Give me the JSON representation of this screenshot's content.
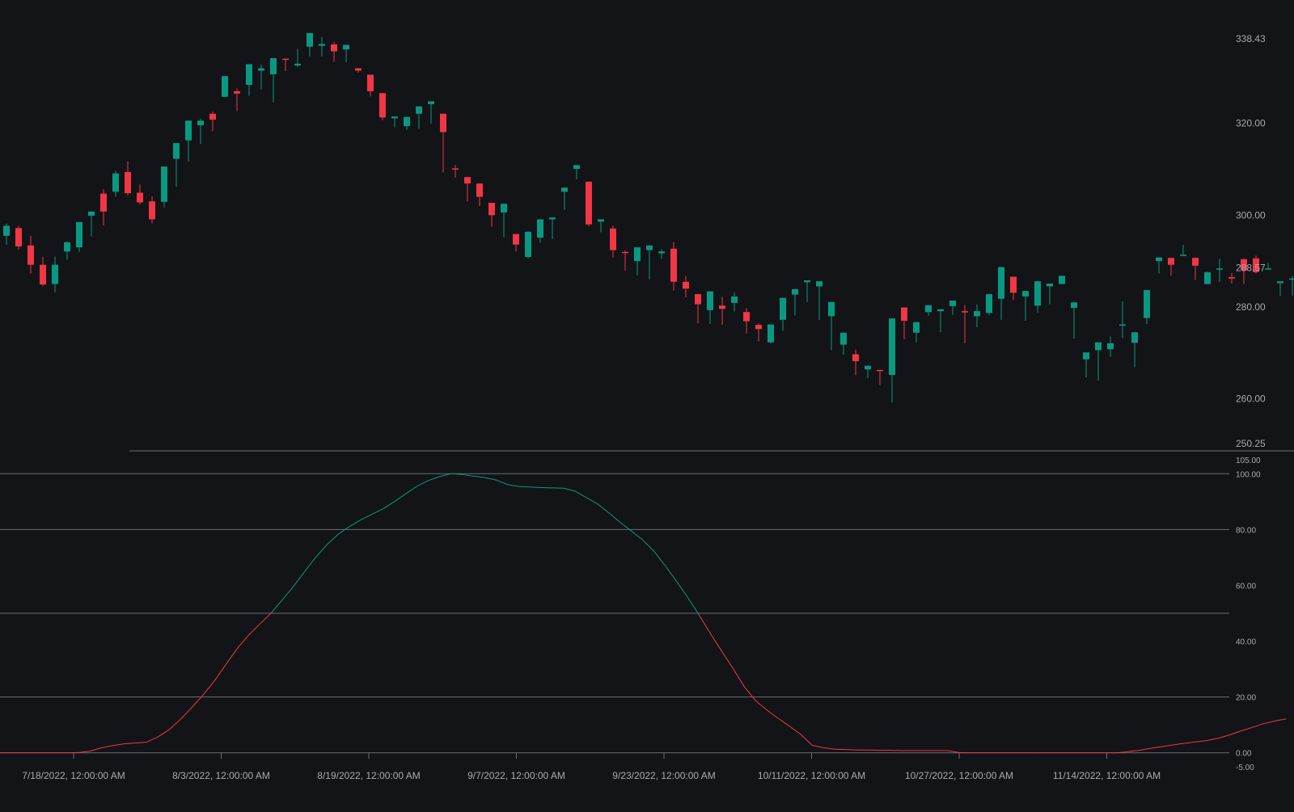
{
  "colors": {
    "background": "#131417",
    "bullish": "#089981",
    "bearish": "#f23645",
    "grid": "#6b6e76",
    "text": "#a8aab0"
  },
  "chart_data": [
    {
      "type": "candlestick",
      "title": "",
      "ylim": [
        250.25,
        338.43
      ],
      "price_axis_labels": [
        "338.43",
        "320.00",
        "300.00",
        "288.57",
        "280.00",
        "260.00",
        "250.25"
      ],
      "last_price": "288.57",
      "x_axis_labels": [
        "7/18/2022, 12:00:00 AM",
        "8/3/2022, 12:00:00 AM",
        "8/19/2022, 12:00:00 AM",
        "9/7/2022, 12:00:00 AM",
        "9/23/2022, 12:00:00 AM",
        "10/11/2022, 12:00:00 AM",
        "10/27/2022, 12:00:00 AM",
        "11/14/2022, 12:00:00 AM"
      ],
      "candles_ohlc": [
        [
          295.5,
          298.2,
          293.5,
          297.7
        ],
        [
          297.2,
          297.7,
          292.5,
          293.2
        ],
        [
          293.4,
          295.5,
          287.3,
          289.2
        ],
        [
          289.2,
          290.9,
          284.5,
          284.9
        ],
        [
          285.0,
          291.0,
          283.2,
          289.2
        ],
        [
          292.1,
          294.3,
          290.3,
          294.1
        ],
        [
          293.0,
          297.3,
          292.0,
          298.5
        ],
        [
          299.9,
          300.7,
          295.4,
          300.8
        ],
        [
          304.7,
          305.6,
          297.8,
          300.8
        ],
        [
          305.1,
          309.7,
          304.0,
          309.1
        ],
        [
          309.4,
          311.7,
          304.3,
          304.8
        ],
        [
          304.9,
          306.7,
          302.3,
          302.8
        ],
        [
          303.0,
          304.1,
          298.2,
          299.1
        ],
        [
          302.9,
          307.6,
          301.7,
          310.6
        ],
        [
          312.3,
          313.5,
          306.2,
          315.7
        ],
        [
          316.3,
          317.7,
          311.7,
          320.6
        ],
        [
          319.6,
          321.0,
          315.5,
          320.6
        ],
        [
          322.1,
          322.6,
          318.3,
          320.8
        ],
        [
          325.8,
          327.9,
          325.7,
          330.3
        ],
        [
          327.0,
          327.6,
          322.7,
          326.5
        ],
        [
          328.4,
          331.3,
          326.0,
          332.9
        ],
        [
          331.5,
          332.8,
          327.4,
          332.0
        ],
        [
          330.7,
          328.6,
          324.6,
          334.2
        ],
        [
          334.1,
          332.6,
          331.4,
          334.0
        ],
        [
          332.6,
          336.2,
          332.3,
          333.0
        ],
        [
          336.7,
          338.4,
          334.6,
          339.7
        ],
        [
          336.9,
          338.8,
          334.6,
          337.3
        ],
        [
          337.2,
          337.8,
          333.4,
          335.7
        ],
        [
          336.1,
          335.2,
          333.3,
          337.1
        ],
        [
          332.0,
          331.0,
          331.6,
          331.5
        ],
        [
          330.6,
          330.4,
          325.9,
          327.0
        ],
        [
          326.6,
          326.5,
          320.7,
          321.3
        ],
        [
          321.1,
          320.7,
          319.1,
          321.5
        ],
        [
          319.4,
          320.8,
          318.6,
          321.4
        ],
        [
          322.1,
          321.6,
          318.8,
          323.7
        ],
        [
          324.2,
          324.0,
          319.9,
          324.8
        ],
        [
          322.1,
          320.1,
          309.3,
          318.1
        ],
        [
          310.2,
          310.9,
          308.2,
          310.0
        ],
        [
          308.3,
          307.2,
          303.0,
          306.9
        ],
        [
          306.9,
          306.5,
          302.0,
          304.0
        ],
        [
          302.7,
          301.7,
          297.5,
          300.0
        ],
        [
          300.6,
          297.2,
          295.2,
          302.5
        ],
        [
          295.9,
          295.5,
          292.1,
          293.6
        ],
        [
          290.9,
          294.8,
          290.6,
          296.4
        ],
        [
          295.1,
          297.7,
          294.0,
          299.1
        ],
        [
          299.1,
          296.9,
          294.8,
          299.5
        ],
        [
          305.1,
          303.6,
          301.2,
          306.0
        ],
        [
          310.1,
          310.4,
          307.8,
          310.9
        ],
        [
          307.3,
          306.0,
          297.6,
          298.0
        ],
        [
          298.6,
          297.8,
          296.3,
          299.1
        ],
        [
          297.1,
          297.7,
          290.8,
          292.4
        ],
        [
          292.0,
          292.3,
          287.9,
          291.8
        ],
        [
          290.0,
          289.5,
          286.9,
          293.0
        ],
        [
          292.4,
          292.3,
          286.0,
          293.4
        ],
        [
          291.7,
          292.6,
          290.5,
          292.1
        ],
        [
          292.7,
          294.1,
          283.6,
          285.5
        ],
        [
          285.5,
          286.8,
          282.1,
          284.0
        ],
        [
          282.8,
          282.2,
          276.4,
          280.6
        ],
        [
          279.3,
          279.4,
          276.3,
          283.4
        ],
        [
          280.3,
          282.2,
          276.1,
          279.6
        ],
        [
          280.9,
          283.2,
          279.0,
          282.3
        ],
        [
          278.9,
          279.7,
          274.2,
          276.9
        ],
        [
          276.1,
          276.4,
          272.5,
          275.2
        ],
        [
          272.3,
          273.8,
          272.1,
          276.2
        ],
        [
          277.2,
          277.2,
          274.8,
          282.0
        ],
        [
          282.7,
          282.1,
          278.2,
          283.9
        ],
        [
          285.4,
          285.6,
          281.1,
          285.8
        ],
        [
          284.5,
          284.8,
          277.2,
          285.6
        ],
        [
          278.0,
          277.0,
          270.6,
          281.1
        ],
        [
          271.8,
          272.3,
          269.6,
          274.4
        ],
        [
          269.7,
          270.7,
          265.1,
          268.2
        ],
        [
          266.4,
          267.0,
          264.5,
          267.2
        ],
        [
          266.3,
          265.9,
          263.0,
          266.2
        ],
        [
          265.2,
          266.4,
          259.2,
          277.5
        ],
        [
          279.9,
          278.7,
          273.0,
          277.0
        ],
        [
          274.4,
          274.7,
          272.3,
          276.7
        ],
        [
          278.9,
          279.7,
          278.1,
          280.4
        ],
        [
          279.1,
          278.3,
          274.5,
          279.5
        ],
        [
          280.2,
          280.8,
          278.3,
          281.4
        ],
        [
          279.1,
          280.4,
          272.1,
          278.8
        ],
        [
          278.0,
          280.6,
          275.6,
          279.1
        ],
        [
          278.7,
          281.2,
          278.2,
          282.8
        ],
        [
          281.8,
          280.8,
          277.2,
          288.7
        ],
        [
          286.6,
          282.5,
          281.5,
          283.1
        ],
        [
          282.3,
          283.0,
          277.0,
          283.5
        ],
        [
          280.3,
          285.0,
          278.8,
          285.6
        ],
        [
          284.5,
          283.3,
          280.6,
          285.1
        ],
        [
          285.0,
          286.7,
          285.5,
          286.8
        ],
        [
          279.8,
          274.5,
          273.1,
          281.0
        ],
        [
          268.6,
          266.1,
          264.7,
          270.1
        ],
        [
          270.6,
          270.1,
          264.0,
          272.3
        ],
        [
          270.8,
          273.6,
          269.1,
          272.1
        ],
        [
          276.0,
          281.2,
          273.2,
          276.2
        ],
        [
          272.2,
          273.3,
          266.9,
          274.5
        ],
        [
          277.6,
          280.3,
          276.3,
          283.7
        ],
        [
          290.0,
          289.9,
          287.3,
          290.8
        ],
        [
          290.7,
          289.0,
          286.8,
          289.2
        ],
        [
          291.3,
          293.5,
          292.2,
          291.4
        ],
        [
          290.7,
          290.8,
          285.9,
          289.0
        ],
        [
          285.0,
          287.7,
          287.1,
          287.6
        ],
        [
          288.4,
          290.5,
          285.4,
          288.4
        ],
        [
          286.5,
          287.4,
          285.1,
          286.2
        ],
        [
          290.4,
          290.6,
          285.0,
          288.0
        ],
        [
          290.6,
          291.2,
          287.3,
          287.6
        ],
        [
          288.3,
          289.6,
          288.2,
          288.4
        ],
        [
          285.2,
          284.7,
          282.4,
          285.6
        ],
        [
          286.1,
          286.7,
          282.5,
          286.2
        ]
      ]
    },
    {
      "type": "line",
      "title": "",
      "ylim": [
        -5,
        105
      ],
      "y_axis_labels": [
        "105.00",
        "100.00",
        "80.00",
        "60.00",
        "40.00",
        "20.00",
        "0.00",
        "-5.00"
      ],
      "levels": [
        100,
        80,
        50,
        20,
        0
      ],
      "upper_threshold": 50,
      "values": [
        0,
        0,
        0,
        0,
        0,
        0,
        0,
        0.1,
        0.6,
        1.8,
        2.6,
        3.2,
        3.5,
        3.8,
        5.7,
        8.3,
        12.0,
        16.2,
        20.7,
        25.7,
        31.5,
        37.2,
        42.0,
        46.0,
        49.9,
        54.7,
        59.5,
        64.9,
        70.1,
        74.6,
        78.4,
        81.1,
        83.5,
        85.5,
        87.5,
        90.1,
        92.9,
        95.6,
        97.6,
        99.0,
        100.0,
        99.7,
        99.1,
        98.6,
        97.7,
        96.1,
        95.4,
        95.2,
        95.0,
        94.9,
        94.8,
        93.7,
        91.4,
        89.1,
        85.9,
        82.5,
        79.4,
        76.2,
        72.1,
        66.9,
        61.3,
        55.5,
        49.2,
        42.6,
        36.3,
        30.1,
        23.6,
        18.6,
        15.3,
        12.3,
        9.5,
        6.5,
        2.7,
        1.8,
        1.3,
        1.2,
        1.0,
        1.0,
        0.9,
        0.9,
        0.8,
        0.8,
        0.8,
        0.8,
        0.8,
        0.1,
        0,
        0,
        0,
        0,
        0,
        0,
        0,
        0,
        0,
        0,
        0,
        0,
        0,
        0,
        0.4,
        0.9,
        1.6,
        2.2,
        2.8,
        3.4,
        3.9,
        4.4,
        5.2,
        6.4,
        7.8,
        9.1,
        10.4,
        11.4,
        12.1
      ]
    }
  ]
}
